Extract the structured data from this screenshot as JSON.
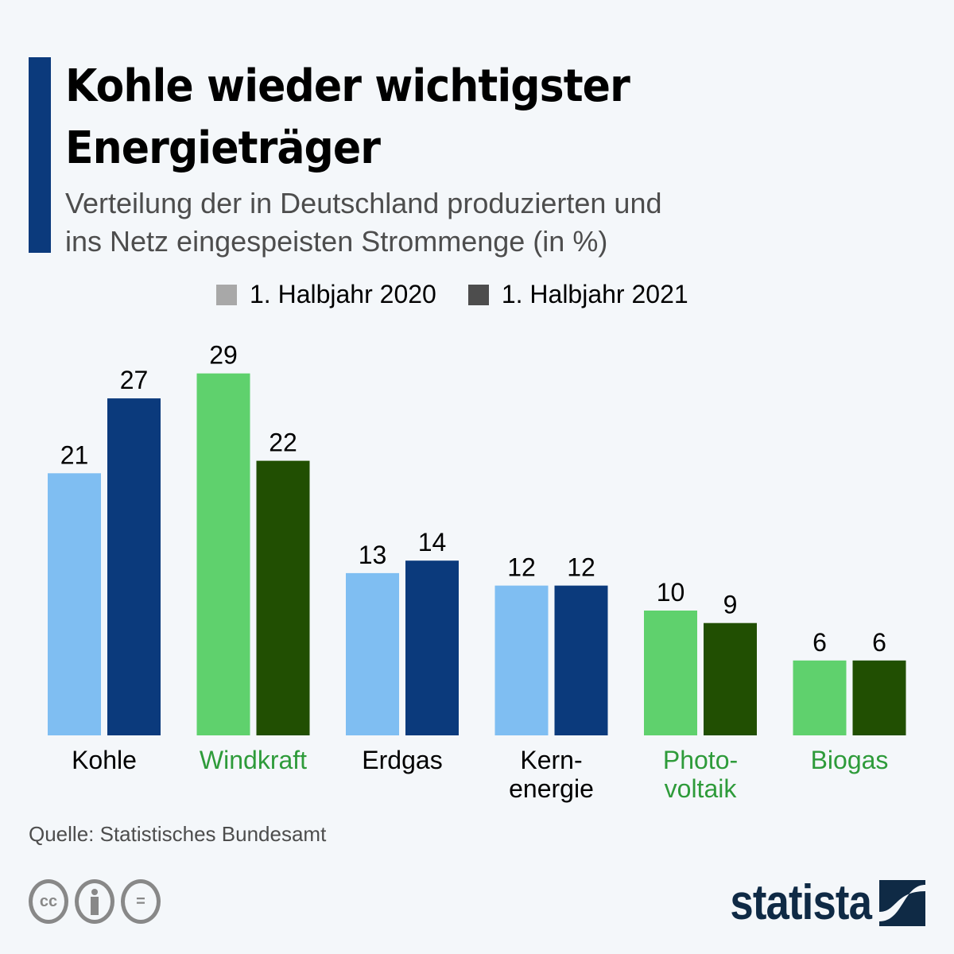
{
  "header": {
    "title_line1": "Kohle wieder wichtigster",
    "title_line2": "Energieträger",
    "subtitle_line1": "Verteilung der in Deutschland produzierten und",
    "subtitle_line2": "ins Netz eingespeisten Strommenge (in %)",
    "accent_color": "#0b3a7c"
  },
  "legend": [
    {
      "label": "1. Halbjahr 2020",
      "color": "#a8a8a8"
    },
    {
      "label": "1. Halbjahr 2021",
      "color": "#4d4d4d"
    }
  ],
  "chart_data": {
    "type": "bar",
    "title": "Kohle wieder wichtigster Energieträger",
    "subtitle": "Verteilung der in Deutschland produzierten und ins Netz eingespeisten Strommenge (in %)",
    "xlabel": "",
    "ylabel": "",
    "ylim": [
      0,
      30
    ],
    "grid": false,
    "legend_position": "top",
    "categories": [
      {
        "name": "Kohle",
        "lines": [
          "Kohle"
        ],
        "renewable": false
      },
      {
        "name": "Windkraft",
        "lines": [
          "Windkraft"
        ],
        "renewable": true
      },
      {
        "name": "Erdgas",
        "lines": [
          "Erdgas"
        ],
        "renewable": false
      },
      {
        "name": "Kernenergie",
        "lines": [
          "Kern-",
          "energie"
        ],
        "renewable": false
      },
      {
        "name": "Photovoltaik",
        "lines": [
          "Photo-",
          "voltaik"
        ],
        "renewable": true
      },
      {
        "name": "Biogas",
        "lines": [
          "Biogas"
        ],
        "renewable": true
      }
    ],
    "series": [
      {
        "name": "1. Halbjahr 2020",
        "values": [
          21,
          29,
          13,
          12,
          10,
          6
        ]
      },
      {
        "name": "1. Halbjahr 2021",
        "values": [
          27,
          22,
          14,
          12,
          9,
          6
        ]
      }
    ],
    "colors": {
      "conventional": [
        "#7fbef2",
        "#0b3a7c"
      ],
      "renewable": [
        "#5fd16d",
        "#214f02"
      ],
      "label_conventional": "#000000",
      "label_renewable": "#2e9b3a"
    }
  },
  "footer": {
    "source": "Quelle: Statistisches Bundesamt",
    "cc_icons": [
      "cc-icon",
      "attribution-icon",
      "no-derivatives-icon"
    ],
    "cc_text": "cc",
    "nd_text": "=",
    "brand": "statista"
  }
}
